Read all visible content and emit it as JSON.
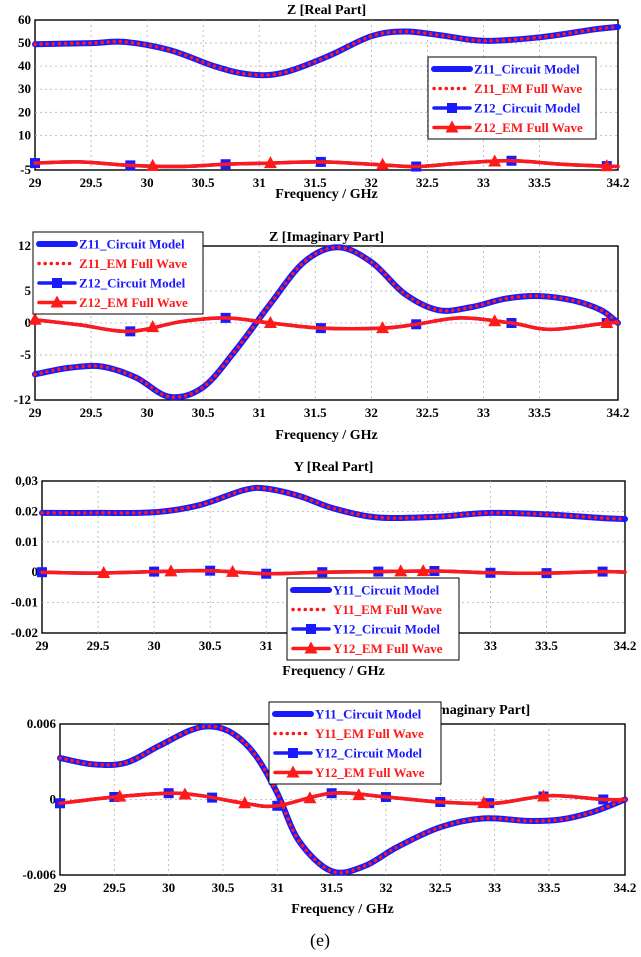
{
  "caption": "(e)",
  "series_style": {
    "Z11_Circuit Model": {
      "color": "#1a1aff",
      "dash": "solid",
      "marker": "none"
    },
    "Z11_EM Full Wave": {
      "color": "#ff1a1a",
      "dash": "dot",
      "marker": "none"
    },
    "Z12_Circuit Model": {
      "color": "#1a1aff",
      "dash": "solid",
      "marker": "square"
    },
    "Z12_EM Full Wave": {
      "color": "#ff1a1a",
      "dash": "solid",
      "marker": "triangle"
    },
    "Y11_Circuit Model": {
      "color": "#1a1aff",
      "dash": "solid",
      "marker": "none"
    },
    "Y11_EM Full Wave": {
      "color": "#ff1a1a",
      "dash": "dot",
      "marker": "none"
    },
    "Y12_Circuit Model": {
      "color": "#1a1aff",
      "dash": "solid",
      "marker": "square"
    },
    "Y12_EM Full Wave": {
      "color": "#ff1a1a",
      "dash": "solid",
      "marker": "triangle"
    }
  },
  "chart_data": [
    {
      "type": "line",
      "title": "Z [Real Part]",
      "xlabel": "Frequency / GHz",
      "ylabel": "",
      "xlim": [
        29,
        34.2
      ],
      "ylim": [
        -5,
        60
      ],
      "xticks": [
        "29",
        "29.5",
        "30",
        "30.5",
        "31",
        "31.5",
        "32",
        "32.5",
        "33",
        "33.5",
        "34.2"
      ],
      "xtick_values": [
        29,
        29.5,
        30,
        30.5,
        31,
        31.5,
        32,
        32.5,
        33,
        33.5,
        34.2
      ],
      "yticks": [
        "60",
        "50",
        "40",
        "30",
        "20",
        "10",
        "-5"
      ],
      "ytick_values": [
        60,
        50,
        40,
        30,
        20,
        10,
        -5
      ],
      "grid": true,
      "legend_position": "right",
      "series": [
        {
          "name": "Z11_Circuit Model",
          "x": [
            29,
            29.5,
            29.8,
            30.2,
            30.6,
            30.9,
            31.2,
            31.6,
            32,
            32.3,
            32.6,
            33,
            33.5,
            34,
            34.2
          ],
          "y": [
            49.5,
            50,
            50.5,
            47,
            40,
            36.5,
            37,
            44,
            53,
            55,
            53.5,
            51,
            52.5,
            56,
            57
          ]
        },
        {
          "name": "Z11_EM Full Wave",
          "x": [
            29,
            29.5,
            29.8,
            30.2,
            30.6,
            30.9,
            31.2,
            31.6,
            32,
            32.3,
            32.6,
            33,
            33.5,
            34,
            34.2
          ],
          "y": [
            49.5,
            50,
            50.5,
            47,
            40,
            36.5,
            37,
            44,
            53,
            55,
            53.5,
            51,
            52.5,
            56,
            57
          ]
        },
        {
          "name": "Z12_Circuit Model",
          "x": [
            29,
            29.4,
            29.85,
            30.3,
            30.7,
            31.1,
            31.55,
            32,
            32.4,
            32.8,
            33.25,
            33.7,
            34.2
          ],
          "y": [
            -2,
            -1.5,
            -3,
            -3.5,
            -2.5,
            -2,
            -1.5,
            -2.5,
            -3.5,
            -2,
            -1,
            -2.5,
            -3.5
          ],
          "markers_x": [
            29,
            29.85,
            30.7,
            31.55,
            32.4,
            33.25,
            34.1
          ]
        },
        {
          "name": "Z12_EM Full Wave",
          "x": [
            29,
            29.4,
            29.85,
            30.3,
            30.7,
            31.1,
            31.55,
            32,
            32.4,
            32.8,
            33.25,
            33.7,
            34.2
          ],
          "y": [
            -2,
            -1.5,
            -3,
            -3.5,
            -2.5,
            -2,
            -1.5,
            -2.5,
            -3.5,
            -2,
            -1,
            -2.5,
            -3.5
          ],
          "markers_x": [
            30.05,
            31.1,
            32.1,
            33.1,
            34.1
          ]
        }
      ]
    },
    {
      "type": "line",
      "title": "Z [Imaginary Part]",
      "xlabel": "Frequency / GHz",
      "ylabel": "",
      "xlim": [
        29,
        34.2
      ],
      "ylim": [
        -12,
        12
      ],
      "xticks": [
        "29",
        "29.5",
        "30",
        "30.5",
        "31",
        "31.5",
        "32",
        "32.5",
        "33",
        "33.5",
        "34.2"
      ],
      "xtick_values": [
        29,
        29.5,
        30,
        30.5,
        31,
        31.5,
        32,
        32.5,
        33,
        33.5,
        34.2
      ],
      "yticks": [
        "12",
        "5",
        "0",
        "-5",
        "-12"
      ],
      "ytick_values": [
        12,
        5,
        0,
        -5,
        -12
      ],
      "grid": true,
      "legend_position": "top-left",
      "series": [
        {
          "name": "Z11_Circuit Model",
          "x": [
            29,
            29.3,
            29.6,
            29.9,
            30.2,
            30.5,
            30.8,
            31.1,
            31.4,
            31.7,
            32,
            32.3,
            32.6,
            32.9,
            33.2,
            33.5,
            33.8,
            34.05,
            34.2
          ],
          "y": [
            -8,
            -7,
            -6.8,
            -8.5,
            -11.5,
            -10,
            -4,
            3,
            9.5,
            11.8,
            9.5,
            4.5,
            2,
            2.5,
            3.8,
            4.2,
            3.5,
            2,
            0
          ]
        },
        {
          "name": "Z11_EM Full Wave",
          "x": [
            29,
            29.3,
            29.6,
            29.9,
            30.2,
            30.5,
            30.8,
            31.1,
            31.4,
            31.7,
            32,
            32.3,
            32.6,
            32.9,
            33.2,
            33.5,
            33.8,
            34.05,
            34.2
          ],
          "y": [
            -8,
            -7,
            -6.8,
            -8.5,
            -11.5,
            -10,
            -4,
            3,
            9.5,
            11.8,
            9.5,
            4.5,
            2,
            2.5,
            3.8,
            4.2,
            3.5,
            2,
            0
          ]
        },
        {
          "name": "Z12_Circuit Model",
          "x": [
            29,
            29.4,
            29.85,
            30.3,
            30.7,
            31.1,
            31.55,
            32.1,
            32.4,
            32.8,
            33.25,
            33.6,
            34.1,
            34.2
          ],
          "y": [
            0.5,
            -0.3,
            -1.3,
            0.2,
            0.8,
            0,
            -0.8,
            -0.8,
            -0.2,
            0.8,
            0,
            -1,
            0,
            0
          ],
          "markers_x": [
            29.85,
            30.7,
            31.55,
            32.4,
            33.25,
            34.1
          ]
        },
        {
          "name": "Z12_EM Full Wave",
          "x": [
            29,
            29.4,
            29.85,
            30.3,
            30.7,
            31.1,
            31.55,
            32.1,
            32.4,
            32.8,
            33.25,
            33.6,
            34.1,
            34.2
          ],
          "y": [
            0.5,
            -0.3,
            -1.3,
            0.2,
            0.8,
            0,
            -0.8,
            -0.8,
            -0.2,
            0.8,
            0,
            -1,
            0,
            0
          ],
          "markers_x": [
            29,
            30.05,
            31.1,
            32.1,
            33.1,
            34.1
          ]
        }
      ]
    },
    {
      "type": "line",
      "title": "Y [Real Part]",
      "xlabel": "Frequency / GHz",
      "ylabel": "",
      "xlim": [
        29,
        34.2
      ],
      "ylim": [
        -0.02,
        0.03
      ],
      "xticks": [
        "29",
        "29.5",
        "30",
        "30.5",
        "31",
        "33",
        "33.5",
        "34.2"
      ],
      "xtick_values": [
        29,
        29.5,
        30,
        30.5,
        31,
        33,
        33.5,
        34.2
      ],
      "yticks": [
        "0,03",
        "0.02",
        "0.01",
        "0",
        "-0.01",
        "-0.02"
      ],
      "ytick_values": [
        0.03,
        0.02,
        0.01,
        0,
        -0.01,
        -0.02
      ],
      "grid": true,
      "legend_position": "bottom-center",
      "series": [
        {
          "name": "Y11_Circuit Model",
          "x": [
            29,
            29.5,
            30,
            30.4,
            30.8,
            31,
            31.3,
            31.6,
            32,
            32.5,
            33,
            33.5,
            34,
            34.2
          ],
          "y": [
            0.0195,
            0.0195,
            0.0197,
            0.022,
            0.027,
            0.0275,
            0.025,
            0.021,
            0.018,
            0.0182,
            0.0195,
            0.019,
            0.0178,
            0.0175
          ]
        },
        {
          "name": "Y11_EM Full Wave",
          "x": [
            29,
            29.5,
            30,
            30.4,
            30.8,
            31,
            31.3,
            31.6,
            32,
            32.5,
            33,
            33.5,
            34,
            34.2
          ],
          "y": [
            0.0195,
            0.0195,
            0.0197,
            0.022,
            0.027,
            0.0275,
            0.025,
            0.021,
            0.018,
            0.0182,
            0.0195,
            0.019,
            0.0178,
            0.0175
          ]
        },
        {
          "name": "Y12_Circuit Model",
          "x": [
            29,
            29.5,
            30,
            30.5,
            31,
            31.5,
            32,
            32.5,
            33,
            33.5,
            34,
            34.2
          ],
          "y": [
            0,
            -0.0003,
            0.0002,
            0.0005,
            -0.0005,
            0,
            0.0002,
            0.0004,
            -0.0002,
            -0.0003,
            0.0002,
            0
          ],
          "markers_x": [
            29,
            30,
            30.5,
            31,
            31.5,
            32,
            32.5,
            33,
            33.5,
            34
          ]
        },
        {
          "name": "Y12_EM Full Wave",
          "x": [
            29,
            29.5,
            30,
            30.5,
            31,
            31.5,
            32,
            32.5,
            33,
            33.5,
            34,
            34.2
          ],
          "y": [
            0,
            -0.0003,
            0.0002,
            0.0005,
            -0.0005,
            0,
            0.0002,
            0.0004,
            -0.0002,
            -0.0003,
            0.0002,
            0
          ],
          "markers_x": [
            29.55,
            30.15,
            30.7,
            32.2,
            32.4
          ]
        }
      ]
    },
    {
      "type": "line",
      "title": "Y [Imaginary Part]",
      "xlabel": "Frequency / GHz",
      "ylabel": "",
      "xlim": [
        29,
        34.2
      ],
      "ylim": [
        -0.006,
        0.006
      ],
      "xticks": [
        "29",
        "29.5",
        "30",
        "30.5",
        "31",
        "31.5",
        "32",
        "32.5",
        "33",
        "33.5",
        "34.2"
      ],
      "xtick_values": [
        29,
        29.5,
        30,
        30.5,
        31,
        31.5,
        32,
        32.5,
        33,
        33.5,
        34.2
      ],
      "yticks": [
        "0.006",
        "0",
        "-0.006"
      ],
      "ytick_values": [
        0.006,
        0,
        -0.006
      ],
      "grid": true,
      "legend_position": "top-center",
      "series": [
        {
          "name": "Y11_Circuit Model",
          "x": [
            29,
            29.3,
            29.6,
            29.9,
            30.2,
            30.4,
            30.6,
            30.8,
            31,
            31.2,
            31.5,
            31.8,
            32.1,
            32.5,
            32.9,
            33.3,
            33.6,
            33.9,
            34.2
          ],
          "y": [
            0.0033,
            0.0028,
            0.0029,
            0.0042,
            0.0055,
            0.0058,
            0.0052,
            0.0035,
            0.0005,
            -0.0033,
            -0.0057,
            -0.0053,
            -0.0038,
            -0.0022,
            -0.0015,
            -0.0017,
            -0.0016,
            -0.001,
            0
          ]
        },
        {
          "name": "Y11_EM Full Wave",
          "x": [
            29,
            29.3,
            29.6,
            29.9,
            30.2,
            30.4,
            30.6,
            30.8,
            31,
            31.2,
            31.5,
            31.8,
            32.1,
            32.5,
            32.9,
            33.3,
            33.6,
            33.9,
            34.2
          ],
          "y": [
            0.0033,
            0.0028,
            0.0029,
            0.0042,
            0.0055,
            0.0058,
            0.0052,
            0.0035,
            0.0005,
            -0.0033,
            -0.0057,
            -0.0053,
            -0.0038,
            -0.0022,
            -0.0015,
            -0.0017,
            -0.0016,
            -0.001,
            0
          ]
        },
        {
          "name": "Y12_Circuit Model",
          "x": [
            29,
            29.5,
            30,
            30.3,
            30.7,
            31,
            31.5,
            32,
            32.5,
            33,
            33.5,
            34,
            34.2
          ],
          "y": [
            -0.0003,
            0.0002,
            0.0005,
            0.0003,
            -0.0003,
            -0.0005,
            0.0005,
            0.0002,
            -0.0002,
            -0.0003,
            0.0003,
            0,
            0
          ],
          "markers_x": [
            29,
            29.5,
            30,
            30.4,
            31,
            31.5,
            32,
            32.5,
            32.95,
            33.45,
            34
          ]
        },
        {
          "name": "Y12_EM Full Wave",
          "x": [
            29,
            29.5,
            30,
            30.3,
            30.7,
            31,
            31.5,
            32,
            32.5,
            33,
            33.5,
            34,
            34.2
          ],
          "y": [
            -0.0003,
            0.0002,
            0.0005,
            0.0003,
            -0.0003,
            -0.0005,
            0.0005,
            0.0002,
            -0.0002,
            -0.0003,
            0.0003,
            0,
            0
          ],
          "markers_x": [
            29.55,
            30.15,
            30.7,
            31.3,
            31.75,
            32.9,
            33.45
          ]
        }
      ]
    }
  ]
}
